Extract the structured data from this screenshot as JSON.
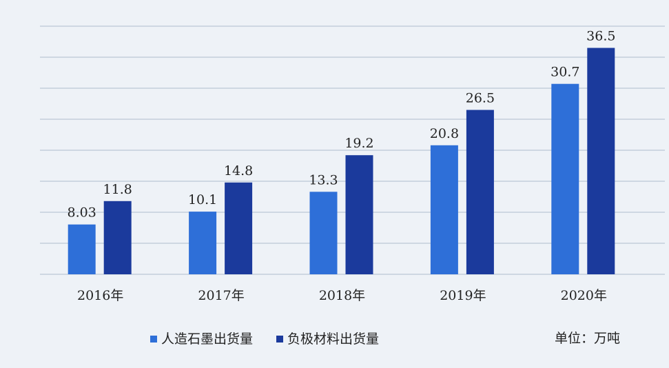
{
  "chart_data": {
    "type": "bar",
    "categories": [
      "2016年",
      "2017年",
      "2018年",
      "2019年",
      "2020年"
    ],
    "series": [
      {
        "name": "人造石墨出货量",
        "color": "#2e6fd8",
        "values": [
          8.03,
          10.1,
          13.3,
          20.8,
          30.7
        ]
      },
      {
        "name": "负极材料出货量",
        "color": "#1b3a9c",
        "values": [
          11.8,
          14.8,
          19.2,
          26.5,
          36.5
        ]
      }
    ],
    "ylim": [
      0,
      40
    ],
    "yticks": [
      0,
      5,
      10,
      15,
      20,
      25,
      30,
      35,
      40
    ],
    "grid": true,
    "unit_note": "单位：万吨"
  }
}
